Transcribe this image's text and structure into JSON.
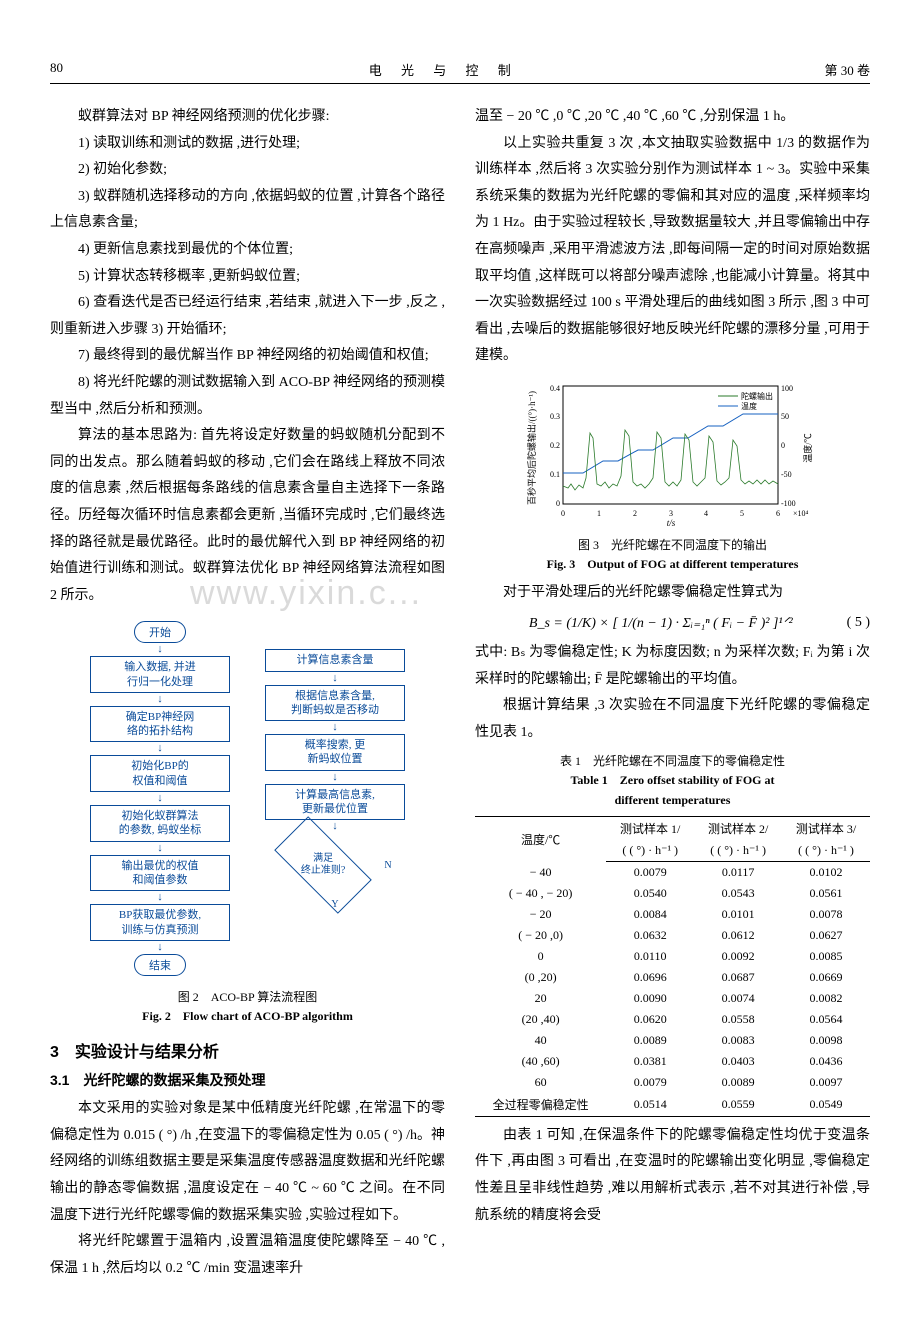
{
  "header": {
    "page": "80",
    "title": "电 光 与 控 制",
    "vol": "第 30 卷"
  },
  "left": {
    "intro": "蚁群算法对 BP 神经网络预测的优化步骤:",
    "steps": [
      "1) 读取训练和测试的数据 ,进行处理;",
      "2) 初始化参数;",
      "3) 蚁群随机选择移动的方向 ,依据蚂蚁的位置 ,计算各个路径上信息素含量;",
      "4) 更新信息素找到最优的个体位置;",
      "5) 计算状态转移概率 ,更新蚂蚁位置;",
      "6) 查看迭代是否已经运行结束 ,若结束 ,就进入下一步 ,反之 ,则重新进入步骤 3) 开始循环;",
      "7) 最终得到的最优解当作 BP 神经网络的初始阈值和权值;",
      "8) 将光纤陀螺的测试数据输入到 ACO-BP 神经网络的预测模型当中 ,然后分析和预测。"
    ],
    "para": "算法的基本思路为: 首先将设定好数量的蚂蚁随机分配到不同的出发点。那么随着蚂蚁的移动 ,它们会在路线上释放不同浓度的信息素 ,然后根据每条路线的信息素含量自主选择下一条路径。历经每次循环时信息素都会更新 ,当循环完成时 ,它们最终选择的路径就是最优路径。此时的最优解代入到 BP 神经网络的初始值进行训练和测试。蚁群算法优化 BP 神经网络算法流程如图 2 所示。",
    "flow": {
      "start": "开始",
      "l1": "输入数据, 并进\n行归一化处理",
      "l2": "确定BP神经网\n络的拓扑结构",
      "l3": "初始化BP的\n权值和阈值",
      "l4": "初始化蚁群算法\n的参数, 蚂蚁坐标",
      "l5": "输出最优的权值\n和阈值参数",
      "l6": "BP获取最优参数,\n训练与仿真预测",
      "end": "结束",
      "r1": "计算信息素含量",
      "r2": "根据信息素含量,\n判断蚂蚁是否移动",
      "r3": "概率搜索, 更\n新蚂蚁位置",
      "r4": "计算最高信息素,\n更新最优位置",
      "diamond": "满足\n终止准则?",
      "Y": "Y",
      "N": "N"
    },
    "fig2_cn": "图 2　ACO-BP 算法流程图",
    "fig2_en": "Fig. 2　Flow chart of ACO-BP algorithm",
    "sec3": "3　实验设计与结果分析",
    "sec31": "3.1　光纤陀螺的数据采集及预处理",
    "p31a": "本文采用的实验对象是某中低精度光纤陀螺 ,在常温下的零偏稳定性为 0.015 ( °) /h ,在变温下的零偏稳定性为 0.05 ( °) /h。神经网络的训练组数据主要是采集温度传感器温度数据和光纤陀螺输出的静态零偏数据 ,温度设定在 − 40 ℃ ~ 60 ℃ 之间。在不同温度下进行光纤陀螺零偏的数据采集实验 ,实验过程如下。",
    "p31b": "将光纤陀螺置于温箱内 ,设置温箱温度使陀螺降至 − 40 ℃ ,保温 1 h ,然后均以 0.2 ℃ /min 变温速率升"
  },
  "right": {
    "p1": "温至 − 20 ℃ ,0 ℃ ,20 ℃ ,40 ℃ ,60 ℃ ,分别保温 1 h。",
    "p2": "以上实验共重复 3 次 ,本文抽取实验数据中 1/3 的数据作为训练样本 ,然后将 3 次实验分别作为测试样本 1 ~ 3。实验中采集系统采集的数据为光纤陀螺的零偏和其对应的温度 ,采样频率均为 1 Hz。由于实验过程较长 ,导致数据量较大 ,并且零偏输出中存在高频噪声 ,采用平滑滤波方法 ,即每间隔一定的时间对原始数据取平均值 ,这样既可以将部分噪声滤除 ,也能减小计算量。将其中一次实验数据经过 100 s 平滑处理后的曲线如图 3 所示 ,图 3 中可看出 ,去噪后的数据能够很好地反映光纤陀螺的漂移分量 ,可用于建模。",
    "chart": {
      "left_label": "百秒平均后陀螺输出/((°)·h⁻¹)",
      "right_label": "温度/℃",
      "x_label": "t/s",
      "x_scale": "×10⁴",
      "left_ticks": [
        "0",
        "0.1",
        "0.2",
        "0.3",
        "0.4"
      ],
      "right_ticks": [
        "-100",
        "-50",
        "0",
        "50",
        "100"
      ],
      "x_ticks": [
        "0",
        "1",
        "2",
        "3",
        "4",
        "5",
        "6"
      ],
      "legend1": "陀螺输出",
      "legend2": "温度",
      "gyro_color": "#2a7a2a",
      "temp_color": "#1560c0",
      "grid_color": "#000",
      "bg": "#ffffff"
    },
    "fig3_cn": "图 3　光纤陀螺在不同温度下的输出",
    "fig3_en": "Fig. 3　Output of FOG at different temperatures",
    "p3": "对于平滑处理后的光纤陀螺零偏稳定性算式为",
    "formula": "B_s = (1/K) × [ 1/(n − 1) · Σᵢ₌₁ⁿ ( Fᵢ − F̄ )² ]¹ᐟ²",
    "formula_num": "( 5 )",
    "p4": "式中: Bₛ 为零偏稳定性; K 为标度因数; n 为采样次数; Fᵢ 为第 i 次采样时的陀螺输出; F̄ 是陀螺输出的平均值。",
    "p5": "根据计算结果 ,3 次实验在不同温度下光纤陀螺的零偏稳定性见表 1。",
    "tab1_cn": "表 1　光纤陀螺在不同温度下的零偏稳定性",
    "tab1_en1": "Table 1　Zero offset stability of FOG at",
    "tab1_en2": "different temperatures",
    "table": {
      "head1": [
        "温度/℃",
        "测试样本 1/",
        "测试样本 2/",
        "测试样本 3/"
      ],
      "head2": [
        "",
        "( ( °) · h⁻¹ )",
        "( ( °) · h⁻¹ )",
        "( ( °) · h⁻¹ )"
      ],
      "rows": [
        [
          "− 40",
          "0.0079",
          "0.0117",
          "0.0102"
        ],
        [
          "( − 40 , − 20)",
          "0.0540",
          "0.0543",
          "0.0561"
        ],
        [
          "− 20",
          "0.0084",
          "0.0101",
          "0.0078"
        ],
        [
          "( − 20 ,0)",
          "0.0632",
          "0.0612",
          "0.0627"
        ],
        [
          "0",
          "0.0110",
          "0.0092",
          "0.0085"
        ],
        [
          "(0 ,20)",
          "0.0696",
          "0.0687",
          "0.0669"
        ],
        [
          "20",
          "0.0090",
          "0.0074",
          "0.0082"
        ],
        [
          "(20 ,40)",
          "0.0620",
          "0.0558",
          "0.0564"
        ],
        [
          "40",
          "0.0089",
          "0.0083",
          "0.0098"
        ],
        [
          "(40 ,60)",
          "0.0381",
          "0.0403",
          "0.0436"
        ],
        [
          "60",
          "0.0079",
          "0.0089",
          "0.0097"
        ],
        [
          "全过程零偏稳定性",
          "0.0514",
          "0.0559",
          "0.0549"
        ]
      ]
    },
    "p6": "由表 1 可知 ,在保温条件下的陀螺零偏稳定性均优于变温条件下 ,再由图 3 可看出 ,在变温时的陀螺输出变化明显 ,零偏稳定性差且呈非线性趋势 ,难以用解析式表示 ,若不对其进行补偿 ,导航系统的精度将会受"
  },
  "watermark": "www.yixin.c..."
}
